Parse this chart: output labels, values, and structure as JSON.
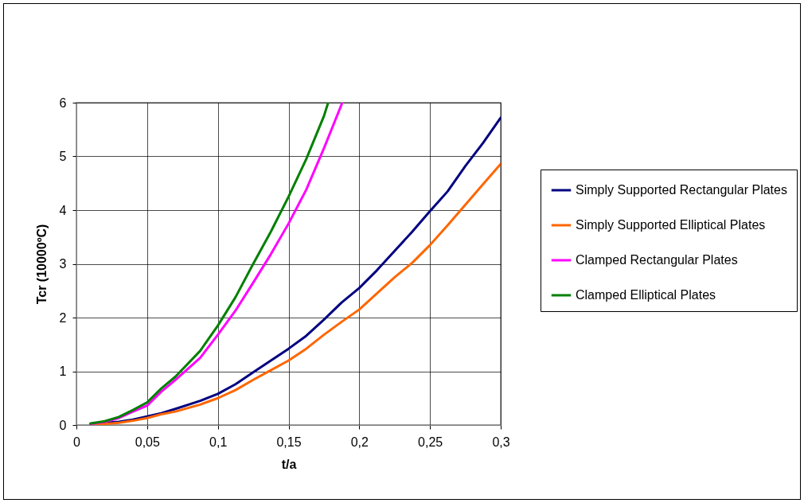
{
  "chart_data": {
    "type": "line",
    "xlabel": "t/a",
    "ylabel": "Tcr (10000ºC)",
    "xlim": [
      0,
      0.3
    ],
    "xticks": [
      0,
      {
        "value": 0.05,
        "label": "0,05"
      },
      {
        "value": 0.1,
        "label": "0,1"
      },
      {
        "value": 0.15,
        "label": "0,15"
      },
      {
        "value": 0.2,
        "label": "0,2"
      },
      {
        "value": 0.25,
        "label": "0,25"
      },
      {
        "value": 0.3,
        "label": "0,3"
      }
    ],
    "ylim": [
      0,
      6
    ],
    "yticks": [
      0,
      1,
      2,
      3,
      4,
      5,
      6
    ],
    "grid": true,
    "legend": "right",
    "marker": "none",
    "line_style": "solid",
    "series": [
      {
        "name": "Simply Supported Rectangular Plates",
        "color": "#000080",
        "x": [
          0.01,
          0.02,
          0.03,
          0.04,
          0.05,
          0.06,
          0.07,
          0.0875,
          0.1,
          0.1125,
          0.125,
          0.1375,
          0.15,
          0.1625,
          0.175,
          0.1875,
          0.2,
          0.2125,
          0.225,
          0.2375,
          0.25,
          0.2625,
          0.275,
          0.2875,
          0.3
        ],
        "values": [
          0.02,
          0.04,
          0.06,
          0.1,
          0.16,
          0.22,
          0.3,
          0.45,
          0.58,
          0.76,
          0.98,
          1.2,
          1.42,
          1.66,
          1.96,
          2.28,
          2.55,
          2.88,
          3.24,
          3.6,
          3.98,
          4.35,
          4.82,
          5.25,
          5.72
        ]
      },
      {
        "name": "Simply Supported Elliptical Plates",
        "color": "#ff6600",
        "x": [
          0.01,
          0.02,
          0.03,
          0.04,
          0.05,
          0.06,
          0.07,
          0.0875,
          0.1,
          0.1125,
          0.125,
          0.1375,
          0.15,
          0.1625,
          0.175,
          0.1875,
          0.2,
          0.2125,
          0.225,
          0.2375,
          0.25,
          0.2625,
          0.275,
          0.2875,
          0.3
        ],
        "values": [
          0.0,
          0.02,
          0.04,
          0.08,
          0.13,
          0.2,
          0.25,
          0.38,
          0.5,
          0.65,
          0.84,
          1.02,
          1.2,
          1.42,
          1.68,
          1.92,
          2.15,
          2.45,
          2.75,
          3.02,
          3.35,
          3.72,
          4.1,
          4.48,
          4.86
        ]
      },
      {
        "name": "Clamped Rectangular Plates",
        "color": "#ff00ff",
        "x": [
          0.01,
          0.02,
          0.03,
          0.04,
          0.05,
          0.06,
          0.07,
          0.0875,
          0.1,
          0.1125,
          0.125,
          0.1375,
          0.15,
          0.1625,
          0.175,
          0.188
        ],
        "values": [
          0.02,
          0.06,
          0.13,
          0.25,
          0.36,
          0.62,
          0.84,
          1.25,
          1.68,
          2.13,
          2.65,
          3.18,
          3.75,
          4.38,
          5.15,
          6
        ]
      },
      {
        "name": "Clamped Elliptical Plates",
        "color": "#008000",
        "x": [
          0.01,
          0.02,
          0.03,
          0.04,
          0.05,
          0.06,
          0.07,
          0.0875,
          0.1,
          0.1125,
          0.125,
          0.1375,
          0.15,
          0.1625,
          0.175,
          0.178
        ],
        "values": [
          0.03,
          0.07,
          0.15,
          0.28,
          0.42,
          0.68,
          0.9,
          1.38,
          1.85,
          2.38,
          3.0,
          3.6,
          4.25,
          4.95,
          5.75,
          6
        ]
      }
    ]
  }
}
